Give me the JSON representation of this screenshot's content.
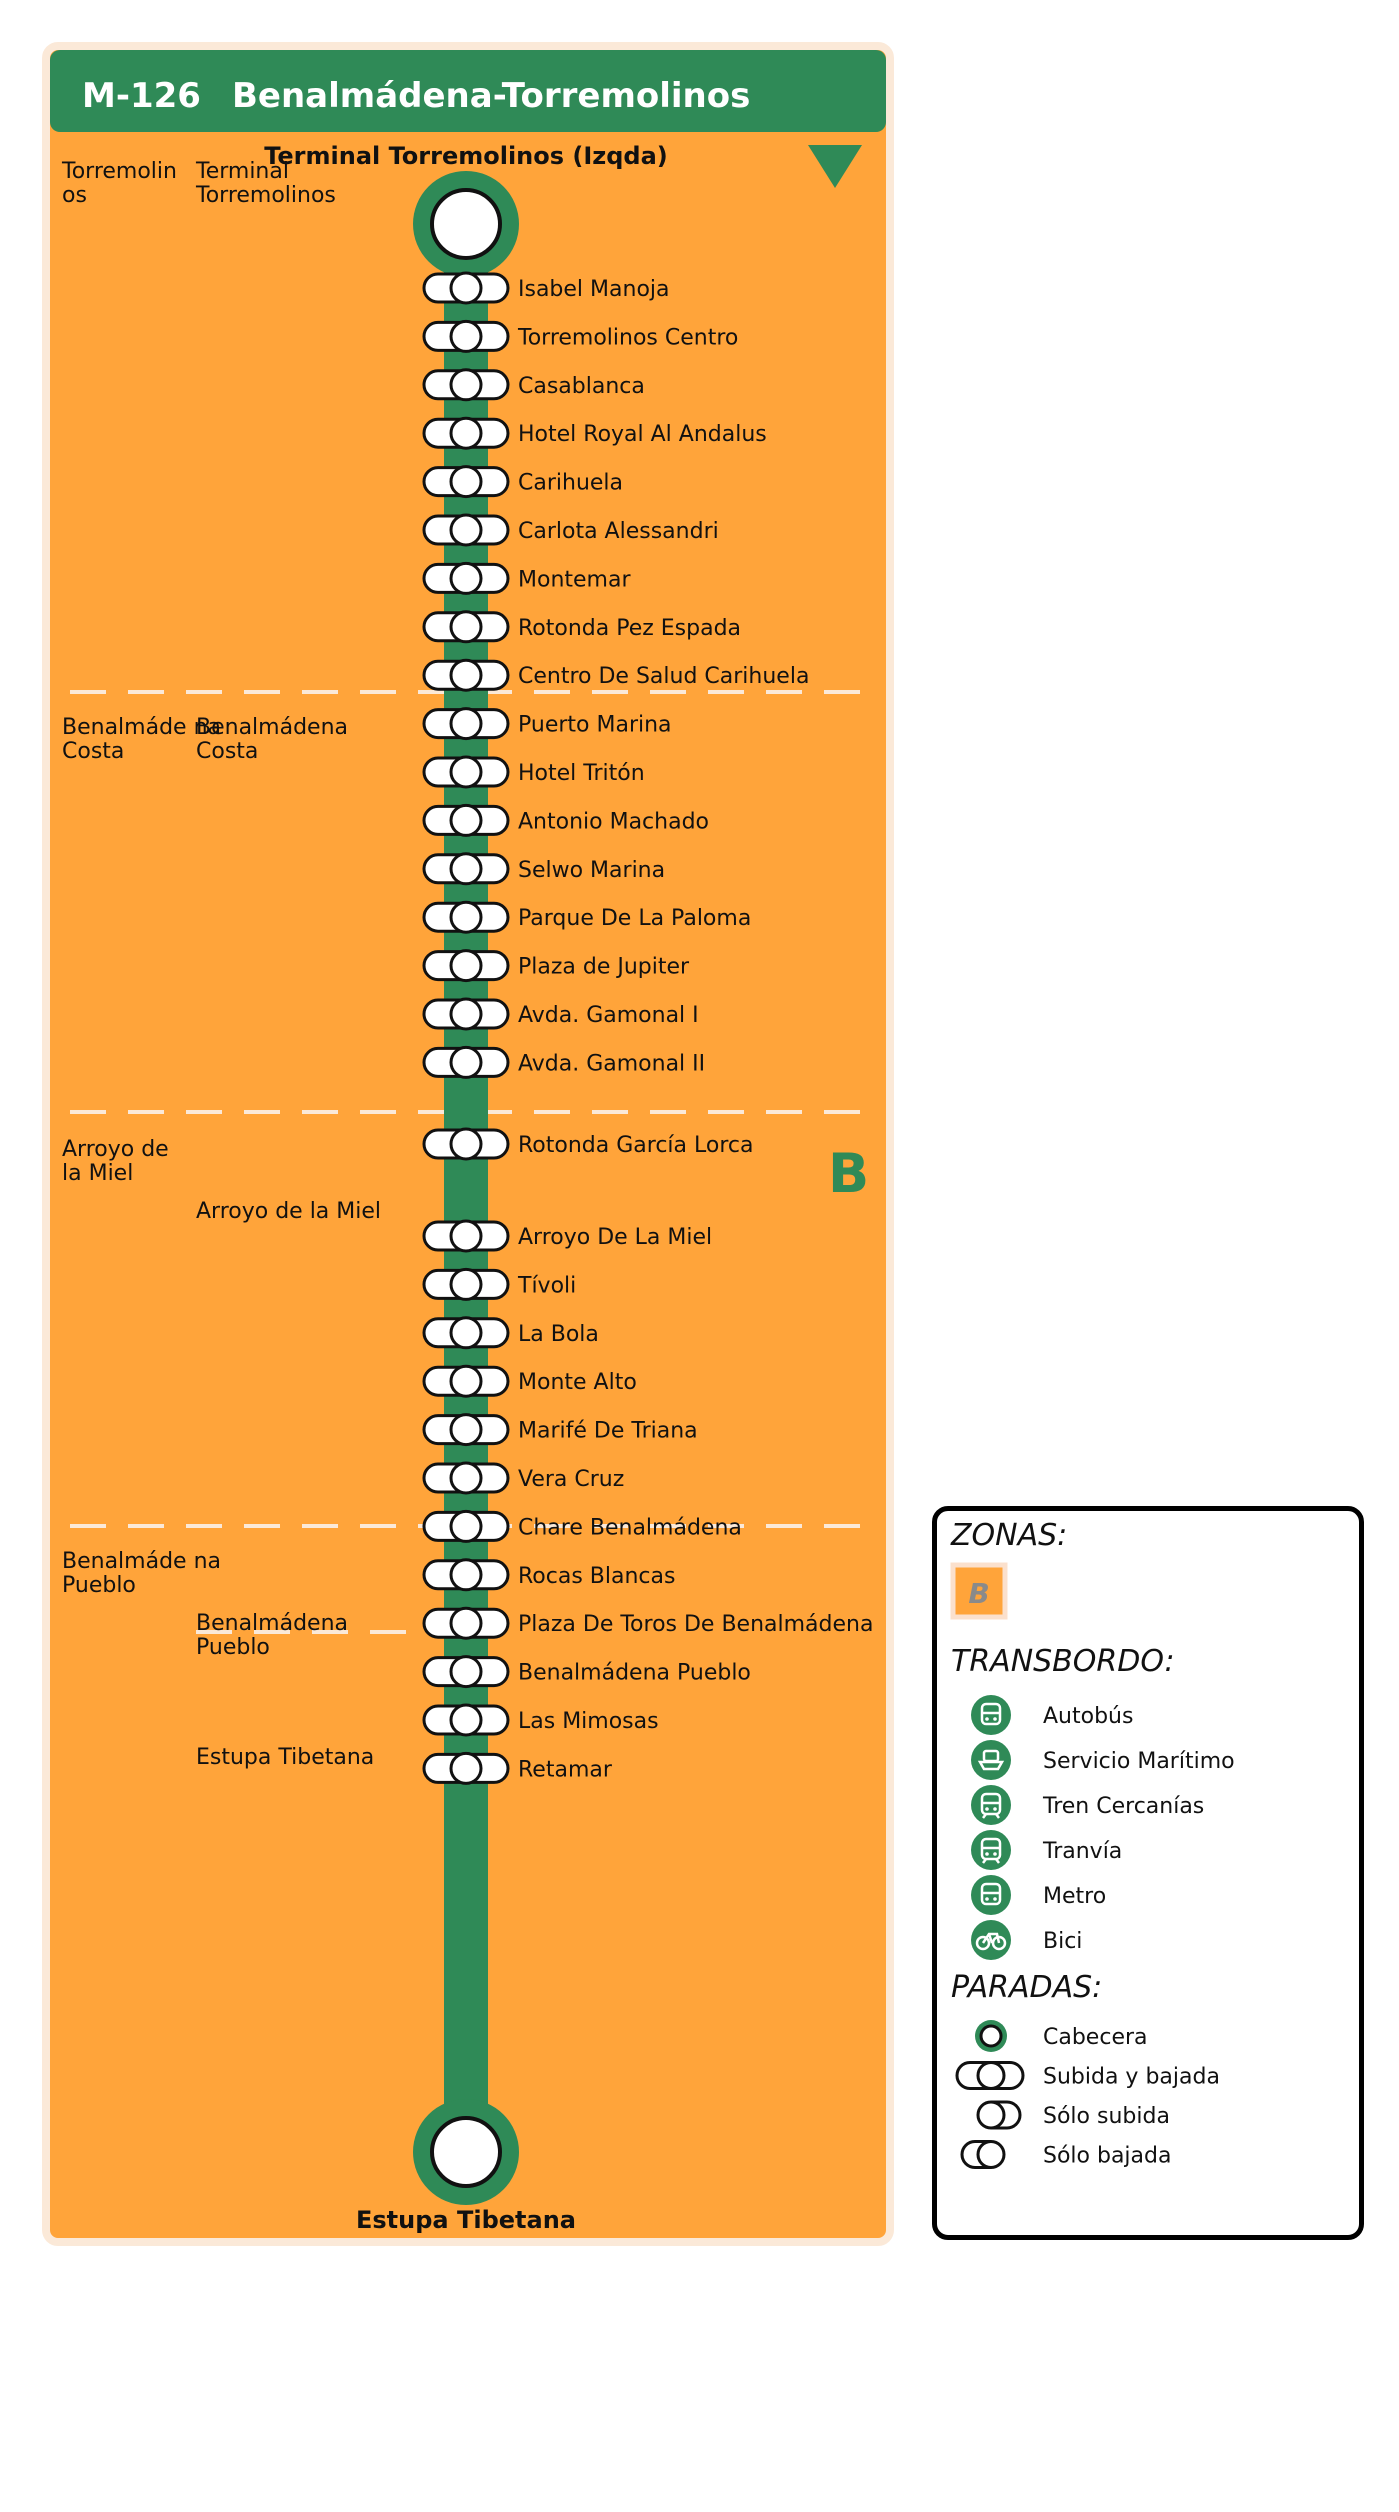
{
  "header": {
    "line_code": "M-126",
    "line_name": "Benalmádena-Torremolinos"
  },
  "terminals": {
    "start_label": "Terminal Torremolinos (Izqda)",
    "end_label": "Estupa Tibetana"
  },
  "zone_letter": "B",
  "municipalities": [
    "Torremolin os",
    "Benalmáde na Costa",
    "Arroyo de la Miel",
    "Benalmáde na Pueblo"
  ],
  "neighborhoods": [
    "Terminal Torremolinos",
    "Benalmádena Costa",
    "Arroyo de la Miel",
    "Benalmádena Pueblo",
    "Estupa Tibetana"
  ],
  "stops": [
    "Isabel Manoja",
    "Torremolinos Centro",
    "Casablanca",
    "Hotel Royal Al Andalus",
    "Carihuela",
    "Carlota Alessandri",
    "Montemar",
    "Rotonda Pez Espada",
    "Centro De Salud Carihuela",
    "Puerto Marina",
    "Hotel Tritón",
    "Antonio Machado",
    "Selwo Marina",
    "Parque De La Paloma",
    "Plaza de Jupiter",
    "Avda. Gamonal I",
    "Avda. Gamonal II",
    "Rotonda García Lorca",
    "Arroyo De La Miel",
    "Tívoli",
    "La Bola",
    "Monte Alto",
    "Marifé De Triana",
    "Vera Cruz",
    "Chare Benalmádena",
    "Rocas Blancas",
    "Plaza De Toros De Benalmádena",
    "Benalmádena Pueblo",
    "Las Mimosas",
    "Retamar"
  ],
  "legend": {
    "zones_title": "ZONAS:",
    "zone_sample": "B",
    "transfer_title": "TRANSBORDO:",
    "transfer_items": [
      {
        "label": "Autobús",
        "icon": "bus-icon"
      },
      {
        "label": "Servicio Marítimo",
        "icon": "ferry-icon"
      },
      {
        "label": "Tren Cercanías",
        "icon": "train-icon"
      },
      {
        "label": "Tranvía",
        "icon": "tram-icon"
      },
      {
        "label": "Metro",
        "icon": "metro-icon"
      },
      {
        "label": "Bici",
        "icon": "bike-icon"
      }
    ],
    "stops_title": "PARADAS:",
    "stop_items": [
      {
        "label": "Cabecera",
        "type": "head"
      },
      {
        "label": "Subida y bajada",
        "type": "both"
      },
      {
        "label": "Sólo subida",
        "type": "board"
      },
      {
        "label": "Sólo bajada",
        "type": "alight"
      }
    ]
  },
  "colors": {
    "zone_fill": "#ffa43a",
    "line": "#2f8a57",
    "header": "#2f8a57"
  }
}
